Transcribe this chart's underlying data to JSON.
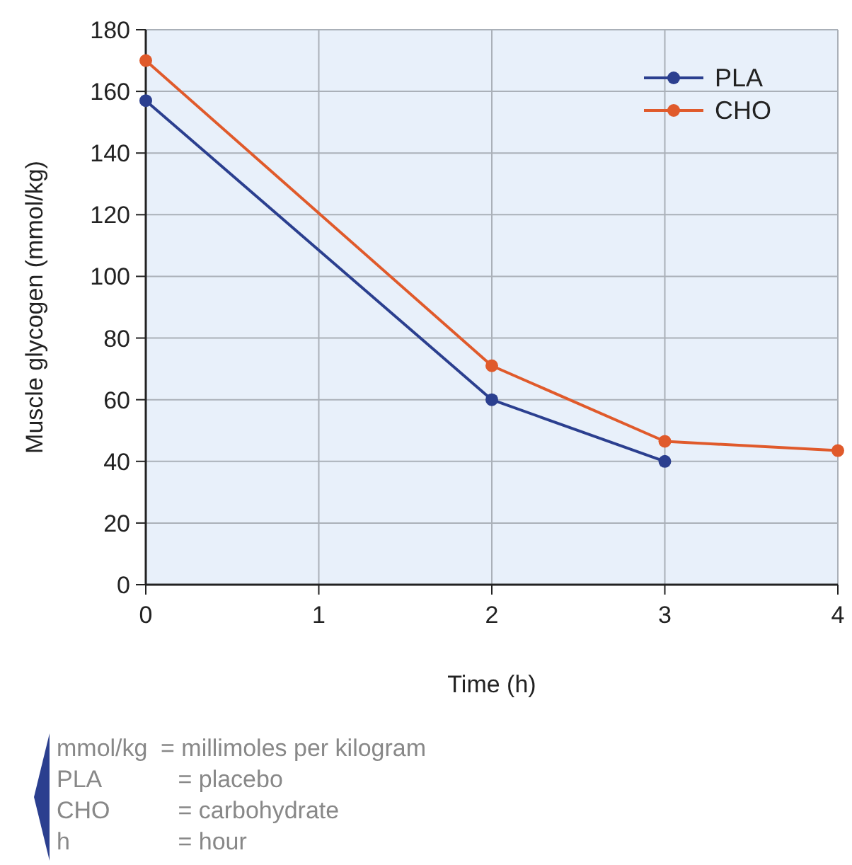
{
  "chart_data": {
    "type": "line",
    "xlabel": "Time (h)",
    "ylabel": "Muscle glycogen (mmol/kg)",
    "xlim": [
      0,
      4
    ],
    "xticks": [
      0,
      1,
      2,
      3,
      4
    ],
    "ylim": [
      0,
      180
    ],
    "yticks": [
      0,
      20,
      40,
      60,
      80,
      100,
      120,
      140,
      160,
      180
    ],
    "grid": true,
    "legend": "top right",
    "marker": "circle",
    "line_style": "solid",
    "series": [
      {
        "name": "PLA",
        "color": "#2b3f8f",
        "x": [
          0,
          2,
          3
        ],
        "values": [
          157,
          60,
          40
        ]
      },
      {
        "name": "CHO",
        "color": "#e05a2b",
        "x": [
          0,
          2,
          3,
          4
        ],
        "values": [
          170,
          71,
          46.5,
          43.5
        ]
      }
    ],
    "annotations": [
      "mmol/kg = millimoles per kilogram",
      "PLA = placebo",
      "CHO = carbohydrate",
      "h = hour"
    ]
  }
}
